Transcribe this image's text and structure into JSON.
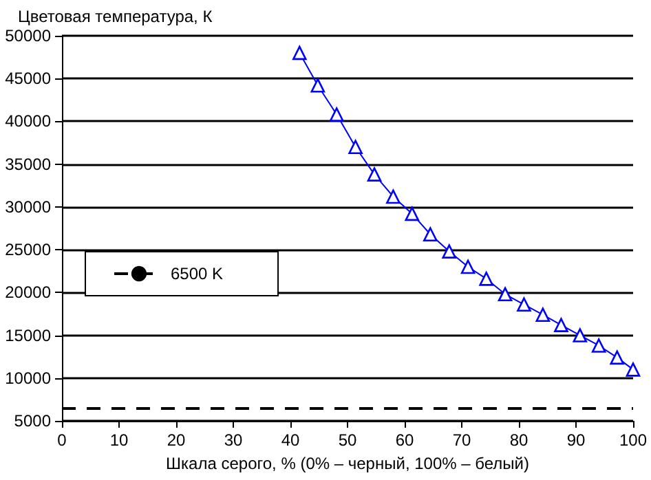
{
  "chart_data": {
    "type": "line",
    "xlabel": "Шкала серого, % (0% – черный, 100% – белый)",
    "ylabel": "Цветовая температура, К",
    "x": [
      41.6,
      44.8,
      48.1,
      51.4,
      54.7,
      58,
      61.3,
      64.5,
      67.8,
      71.1,
      74.3,
      77.6,
      80.9,
      84.2,
      87.4,
      90.7,
      94,
      97.2,
      100
    ],
    "series": [
      {
        "color": "#0000ff",
        "values": [
          48000,
          44200,
          40800,
          37000,
          33800,
          31200,
          29200,
          26800,
          24800,
          23000,
          21600,
          19800,
          18600,
          17400,
          16200,
          15000,
          13800,
          12400,
          11000
        ]
      }
    ],
    "xlim": [
      0,
      100
    ],
    "xticks": [
      0,
      10,
      20,
      30,
      40,
      50,
      60,
      70,
      80,
      90,
      100
    ],
    "ylim": [
      5000,
      50000
    ],
    "yticks": [
      5000,
      10000,
      15000,
      20000,
      25000,
      30000,
      35000,
      40000,
      45000,
      50000
    ],
    "grid": "y",
    "marker": "triangle",
    "line_style": "solid",
    "legend": "left",
    "ref_lines": [
      {
        "axis": "y",
        "value": 6500,
        "label": "6500 K",
        "color": "#000000",
        "line_style": "dashed"
      }
    ]
  }
}
